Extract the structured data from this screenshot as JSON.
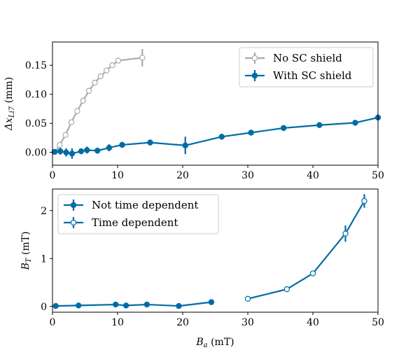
{
  "chart_data": [
    {
      "type": "line",
      "ylabel_main": "Δx",
      "ylabel_sub": "Li7",
      "ylabel_unit": " (mm)",
      "xlim": [
        0,
        50
      ],
      "ylim": [
        -0.022,
        0.19
      ],
      "x_ticks": [
        0,
        10,
        20,
        30,
        40,
        50
      ],
      "y_ticks": [
        0.0,
        0.05,
        0.1,
        0.15
      ],
      "y_tick_labels": [
        "0.00",
        "0.05",
        "0.10",
        "0.15"
      ],
      "legend_position": "top-right",
      "series": [
        {
          "name": "No SC shield",
          "color": "#aaaaaa",
          "marker": "open-circle",
          "points": [
            {
              "x": 0.4,
              "y": 0.001
            },
            {
              "x": 1.1,
              "y": 0.013
            },
            {
              "x": 2.0,
              "y": 0.03
            },
            {
              "x": 2.9,
              "y": 0.052
            },
            {
              "x": 3.8,
              "y": 0.071
            },
            {
              "x": 4.7,
              "y": 0.089
            },
            {
              "x": 5.6,
              "y": 0.106
            },
            {
              "x": 6.5,
              "y": 0.12
            },
            {
              "x": 7.4,
              "y": 0.131
            },
            {
              "x": 8.3,
              "y": 0.141
            },
            {
              "x": 9.2,
              "y": 0.15
            },
            {
              "x": 10.1,
              "y": 0.158
            },
            {
              "x": 13.8,
              "y": 0.163,
              "err": 0.015
            }
          ]
        },
        {
          "name": "With SC shield",
          "color": "#006ca5",
          "marker": "filled-circle",
          "points": [
            {
              "x": 0.3,
              "y": 0.001
            },
            {
              "x": 1.2,
              "y": 0.002,
              "err": 0.006
            },
            {
              "x": 2.1,
              "y": 0.0,
              "err": 0.007
            },
            {
              "x": 3.0,
              "y": -0.002,
              "err": 0.009
            },
            {
              "x": 4.4,
              "y": 0.002,
              "err": 0.005
            },
            {
              "x": 5.3,
              "y": 0.004,
              "err": 0.006
            },
            {
              "x": 6.9,
              "y": 0.003,
              "err": 0.005
            },
            {
              "x": 8.7,
              "y": 0.008,
              "err": 0.006
            },
            {
              "x": 10.7,
              "y": 0.013,
              "err": 0.005
            },
            {
              "x": 15.0,
              "y": 0.017,
              "err": 0.005
            },
            {
              "x": 20.4,
              "y": 0.012,
              "err": 0.015
            },
            {
              "x": 26.0,
              "y": 0.027,
              "err": 0.005
            },
            {
              "x": 30.5,
              "y": 0.034,
              "err": 0.004
            },
            {
              "x": 35.5,
              "y": 0.042,
              "err": 0.004
            },
            {
              "x": 41.0,
              "y": 0.047,
              "err": 0.005
            },
            {
              "x": 46.5,
              "y": 0.051,
              "err": 0.005
            },
            {
              "x": 50.0,
              "y": 0.06,
              "err": 0.005
            }
          ]
        }
      ]
    },
    {
      "type": "line",
      "xlabel_main": "B",
      "xlabel_sub": "a",
      "xlabel_unit": " (mT)",
      "ylabel_main": "B",
      "ylabel_sub": "T",
      "ylabel_unit": " (mT)",
      "xlim": [
        0,
        50
      ],
      "ylim": [
        -0.12,
        2.45
      ],
      "x_ticks": [
        0,
        10,
        20,
        30,
        40,
        50
      ],
      "y_ticks": [
        0,
        1,
        2
      ],
      "y_tick_labels": [
        "0",
        "1",
        "2"
      ],
      "legend_position": "top-left",
      "series": [
        {
          "name": "Not time dependent",
          "color": "#006ca5",
          "marker": "filled-circle",
          "points": [
            {
              "x": 0.5,
              "y": 0.01
            },
            {
              "x": 4.0,
              "y": 0.02
            },
            {
              "x": 9.7,
              "y": 0.04
            },
            {
              "x": 11.3,
              "y": 0.02
            },
            {
              "x": 14.5,
              "y": 0.04
            },
            {
              "x": 19.4,
              "y": 0.01
            },
            {
              "x": 24.4,
              "y": 0.09
            }
          ]
        },
        {
          "name": "Time dependent",
          "color": "#006ca5",
          "marker": "open-circle",
          "points": [
            {
              "x": 30.0,
              "y": 0.16
            },
            {
              "x": 36.0,
              "y": 0.36
            },
            {
              "x": 40.0,
              "y": 0.69
            },
            {
              "x": 45.0,
              "y": 1.52,
              "err": 0.17
            },
            {
              "x": 47.9,
              "y": 2.2,
              "err": 0.14
            }
          ]
        }
      ]
    }
  ]
}
